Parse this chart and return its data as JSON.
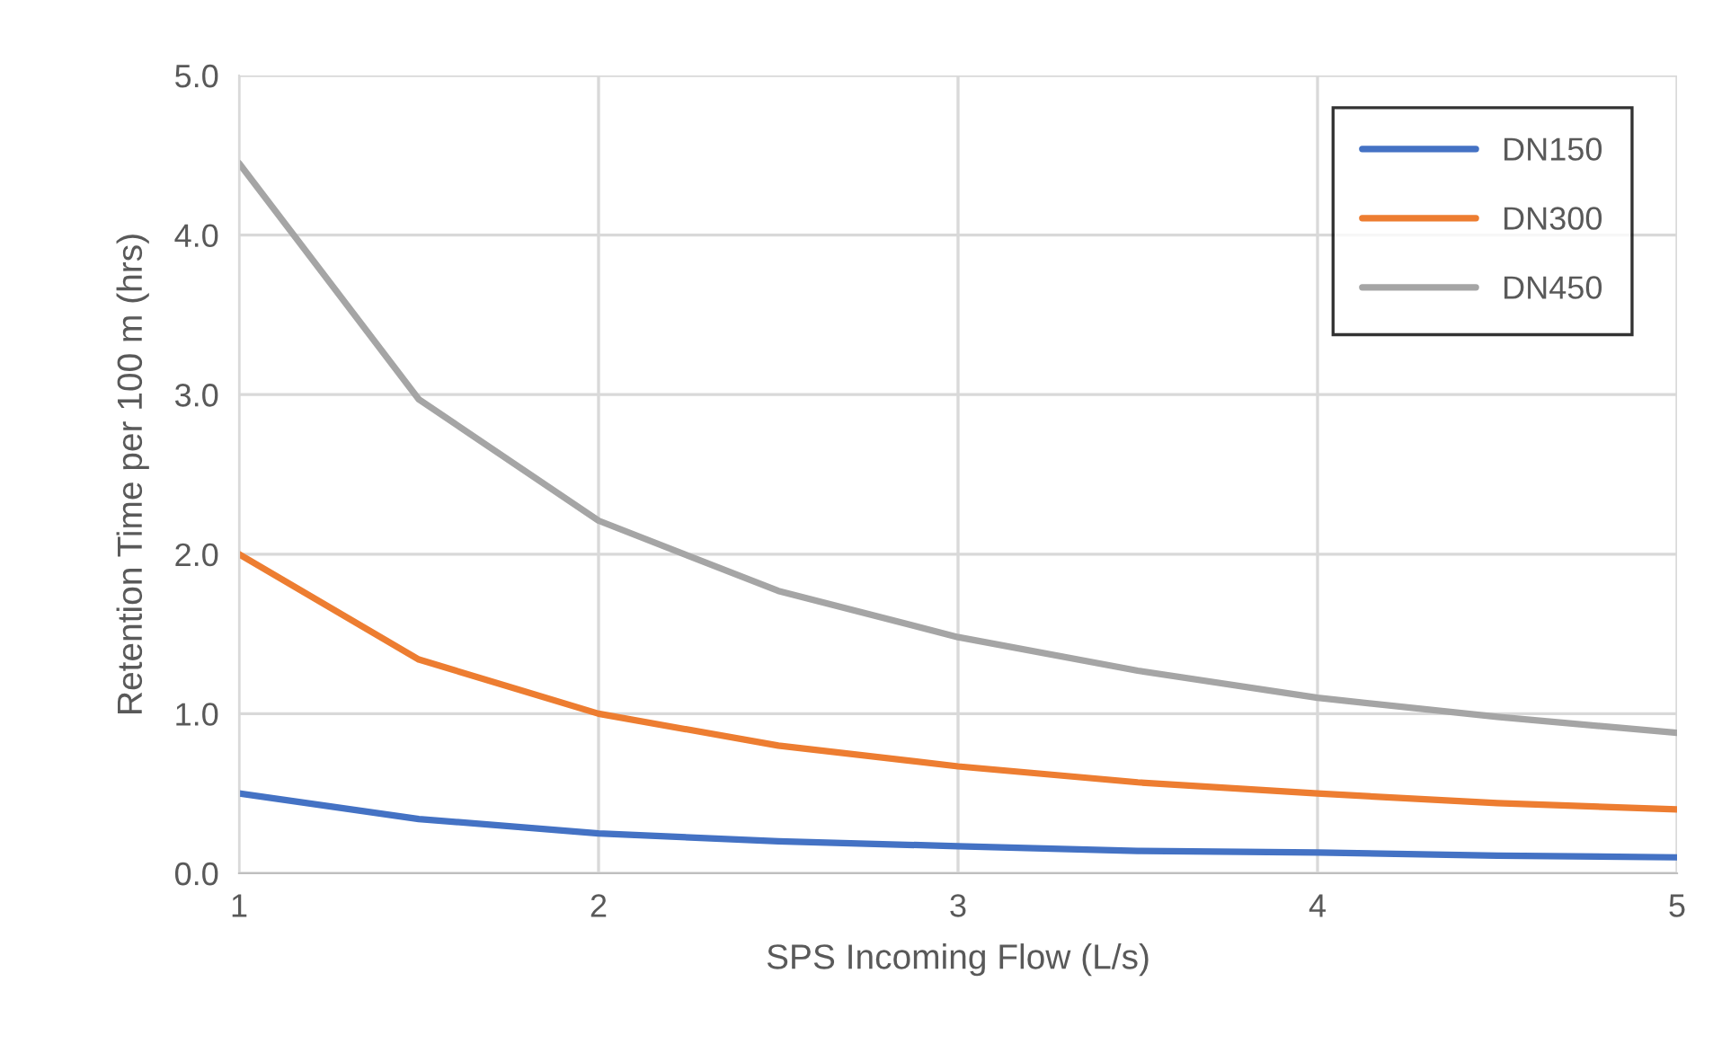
{
  "chart_data": {
    "type": "line",
    "xlabel": "SPS Incoming Flow (L/s)",
    "ylabel": "Retention Time per 100 m (hrs)",
    "x": [
      1,
      1.5,
      2,
      2.5,
      3,
      3.5,
      4,
      4.5,
      5
    ],
    "series": [
      {
        "name": "DN150",
        "color": "#4472c4",
        "values": [
          0.5,
          0.34,
          0.25,
          0.2,
          0.17,
          0.14,
          0.13,
          0.11,
          0.1
        ]
      },
      {
        "name": "DN300",
        "color": "#ed7d31",
        "values": [
          2.0,
          1.34,
          1.0,
          0.8,
          0.67,
          0.57,
          0.5,
          0.44,
          0.4
        ]
      },
      {
        "name": "DN450",
        "color": "#a5a5a5",
        "values": [
          4.45,
          2.97,
          2.21,
          1.77,
          1.48,
          1.27,
          1.1,
          0.98,
          0.88
        ]
      }
    ],
    "xlim": [
      1,
      5
    ],
    "xticks": [
      1,
      2,
      3,
      4,
      5
    ],
    "ylim": [
      0,
      5
    ],
    "yticks": [
      {
        "value": 0,
        "label": "0.0"
      },
      {
        "value": 1,
        "label": "1.0"
      },
      {
        "value": 2,
        "label": "2.0"
      },
      {
        "value": 3,
        "label": "3.0"
      },
      {
        "value": 4,
        "label": "4.0"
      },
      {
        "value": 5,
        "label": "5.0"
      }
    ],
    "grid": true,
    "legend": "top right",
    "marker": "none",
    "line_style": "solid"
  }
}
